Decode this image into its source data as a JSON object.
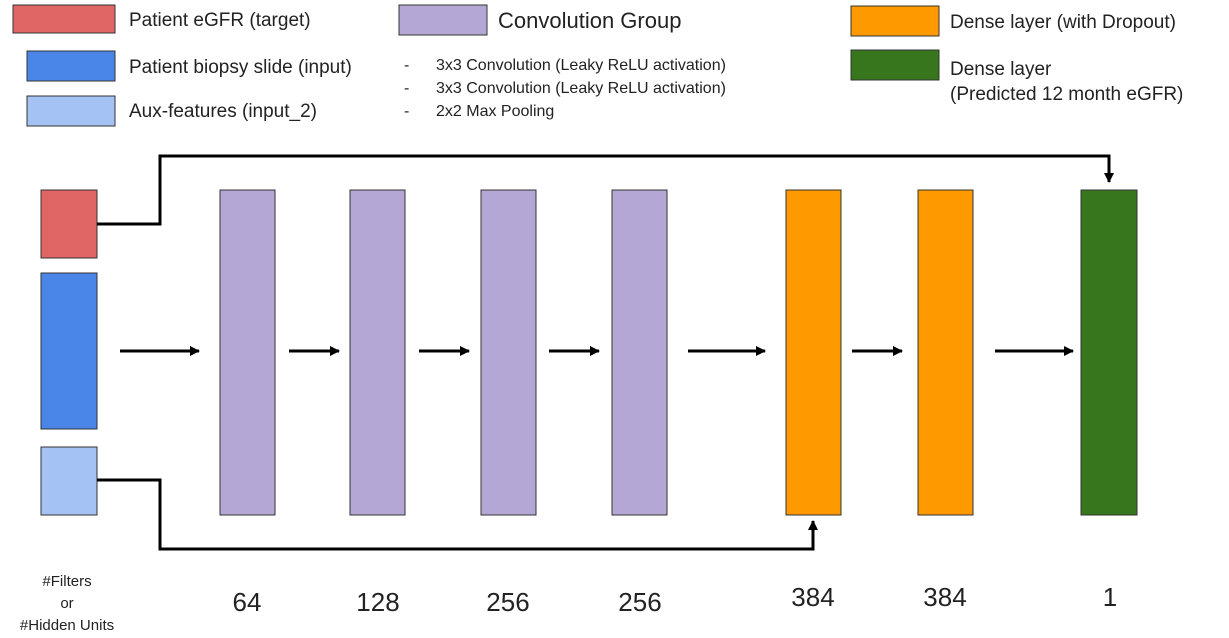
{
  "colors": {
    "target": "#e06666",
    "input": "#4a86e8",
    "aux": "#a4c2f4",
    "conv": "#b4a7d6",
    "dense_dropout": "#ff9900",
    "dense_output": "#38761d",
    "stroke": "#333333",
    "arrow": "#000000"
  },
  "legend": {
    "target": "Patient eGFR (target)",
    "input": "Patient biopsy slide (input)",
    "aux": "Aux-features (input_2)",
    "conv_title": "Convolution Group",
    "conv_items": [
      "3x3 Convolution (Leaky ReLU activation)",
      "3x3 Convolution (Leaky ReLU activation)",
      "2x2 Max Pooling"
    ],
    "dense_dropout": "Dense layer (with Dropout)",
    "dense_output_line1": "Dense layer",
    "dense_output_line2": "(Predicted 12 month eGFR)"
  },
  "caption": {
    "line1": "#Filters",
    "line2": "or",
    "line3": "#Hidden Units"
  },
  "layers": [
    {
      "kind": "conv",
      "units": "64"
    },
    {
      "kind": "conv",
      "units": "128"
    },
    {
      "kind": "conv",
      "units": "256"
    },
    {
      "kind": "conv",
      "units": "256"
    },
    {
      "kind": "dense_dropout",
      "units": "384"
    },
    {
      "kind": "dense_dropout",
      "units": "384"
    },
    {
      "kind": "dense_output",
      "units": "1"
    }
  ]
}
